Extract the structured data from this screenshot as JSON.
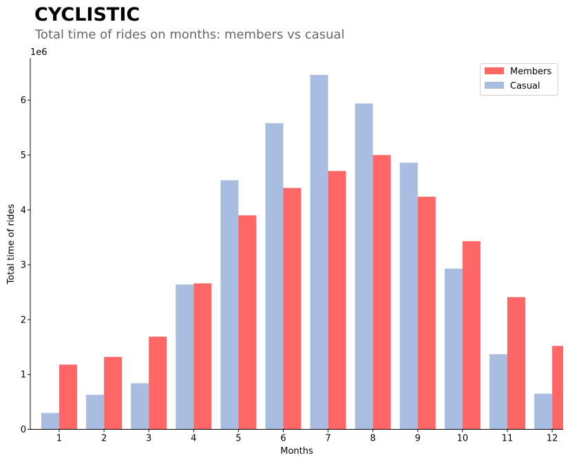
{
  "chart_data": {
    "type": "bar",
    "title": "CYCLISTIC",
    "subtitle": "Total time of rides on months: members vs casual",
    "xlabel": "Months",
    "ylabel": "Total time of rides",
    "y_offset_label": "1e6",
    "categories": [
      "1",
      "2",
      "3",
      "4",
      "5",
      "6",
      "7",
      "8",
      "9",
      "10",
      "11",
      "12"
    ],
    "series": [
      {
        "name": "Casual",
        "color": "#a8bddf",
        "values": [
          0.3,
          0.63,
          0.84,
          2.64,
          4.54,
          5.58,
          6.46,
          5.94,
          4.86,
          2.93,
          1.37,
          0.65
        ]
      },
      {
        "name": "Members",
        "color": "#ff6666",
        "values": [
          1.18,
          1.32,
          1.69,
          2.66,
          3.9,
          4.4,
          4.71,
          5.0,
          4.24,
          3.43,
          2.41,
          1.52
        ]
      }
    ],
    "legend": [
      "Members",
      "Casual"
    ],
    "legend_position": "top-right",
    "yticks": [
      "0",
      "1",
      "2",
      "3",
      "4",
      "5",
      "6"
    ],
    "ylim": [
      0,
      6.8
    ],
    "grid": false
  }
}
